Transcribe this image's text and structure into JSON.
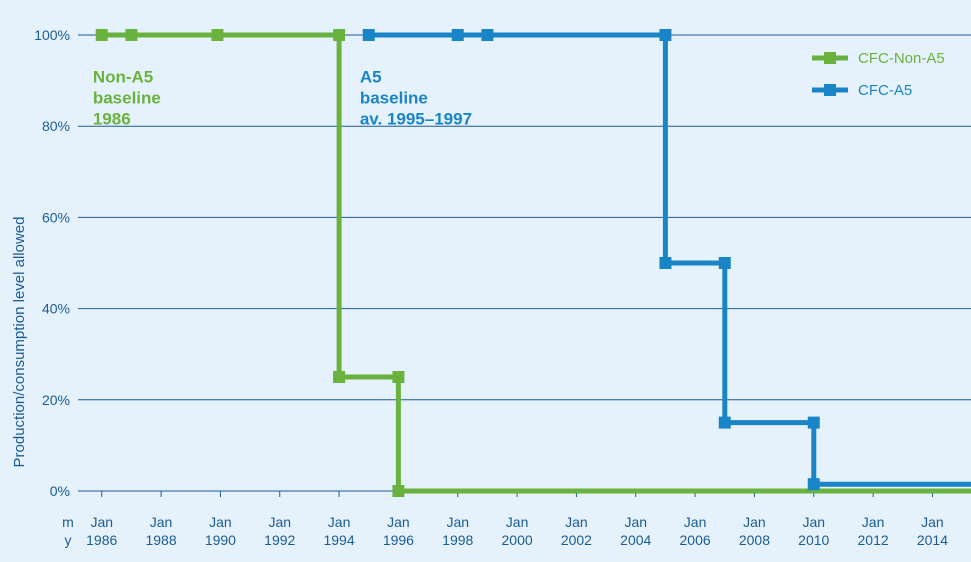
{
  "chart_data": {
    "type": "line",
    "ylabel": "Production/consumption level allowed",
    "x_unit_labels": [
      "m",
      "y"
    ],
    "x_ticks": [
      {
        "month": "Jan",
        "year": "1986",
        "value": 1986
      },
      {
        "month": "Jan",
        "year": "1988",
        "value": 1988
      },
      {
        "month": "Jan",
        "year": "1990",
        "value": 1990
      },
      {
        "month": "Jan",
        "year": "1992",
        "value": 1992
      },
      {
        "month": "Jan",
        "year": "1994",
        "value": 1994
      },
      {
        "month": "Jan",
        "year": "1996",
        "value": 1996
      },
      {
        "month": "Jan",
        "year": "1998",
        "value": 1998
      },
      {
        "month": "Jan",
        "year": "2000",
        "value": 2000
      },
      {
        "month": "Jan",
        "year": "2002",
        "value": 2002
      },
      {
        "month": "Jan",
        "year": "2004",
        "value": 2004
      },
      {
        "month": "Jan",
        "year": "2006",
        "value": 2006
      },
      {
        "month": "Jan",
        "year": "2008",
        "value": 2008
      },
      {
        "month": "Jan",
        "year": "2010",
        "value": 2010
      },
      {
        "month": "Jan",
        "year": "2012",
        "value": 2012
      },
      {
        "month": "Jan",
        "year": "2014",
        "value": 2014
      }
    ],
    "y_ticks": [
      {
        "label": "0%",
        "value": 0
      },
      {
        "label": "20%",
        "value": 20
      },
      {
        "label": "40%",
        "value": 40
      },
      {
        "label": "60%",
        "value": 60
      },
      {
        "label": "80%",
        "value": 80
      },
      {
        "label": "100%",
        "value": 100
      }
    ],
    "xlim": [
      1985.2,
      2015.3
    ],
    "ylim": [
      0,
      100
    ],
    "grid": "horizontal",
    "legend_position": "top-right",
    "series": [
      {
        "name": "CFC-Non-A5",
        "color": "#6ab23e",
        "line": [
          [
            1986,
            100
          ],
          [
            1994,
            100
          ],
          [
            1994,
            25
          ],
          [
            1996,
            25
          ],
          [
            1996,
            0
          ],
          [
            2015.3,
            0
          ]
        ],
        "markers": [
          [
            1986,
            100
          ],
          [
            1987,
            100
          ],
          [
            1989.9,
            100
          ],
          [
            1994,
            100
          ],
          [
            1994,
            25
          ],
          [
            1996,
            25
          ],
          [
            1996,
            0
          ]
        ]
      },
      {
        "name": "CFC-A5",
        "color": "#1a85c6",
        "line": [
          [
            1995,
            100
          ],
          [
            1998,
            100
          ],
          [
            1999,
            100
          ],
          [
            2005,
            100
          ],
          [
            2005,
            50
          ],
          [
            2007,
            50
          ],
          [
            2007,
            15
          ],
          [
            2010,
            15
          ],
          [
            2010,
            1.5
          ],
          [
            2015.3,
            1.5
          ]
        ],
        "markers": [
          [
            1995,
            100
          ],
          [
            1998,
            100
          ],
          [
            1999,
            100
          ],
          [
            2005,
            100
          ],
          [
            2005,
            50
          ],
          [
            2007,
            50
          ],
          [
            2007,
            15
          ],
          [
            2010,
            15
          ],
          [
            2010,
            1.5
          ]
        ]
      }
    ],
    "annotations": [
      {
        "series": 0,
        "lines": [
          "Non-A5",
          "baseline",
          "1986"
        ],
        "x": 1985.7,
        "y": 95.5
      },
      {
        "series": 1,
        "lines": [
          "A5",
          "baseline",
          "av. 1995–1997"
        ],
        "x": 1994.7,
        "y": 95.5
      }
    ]
  }
}
